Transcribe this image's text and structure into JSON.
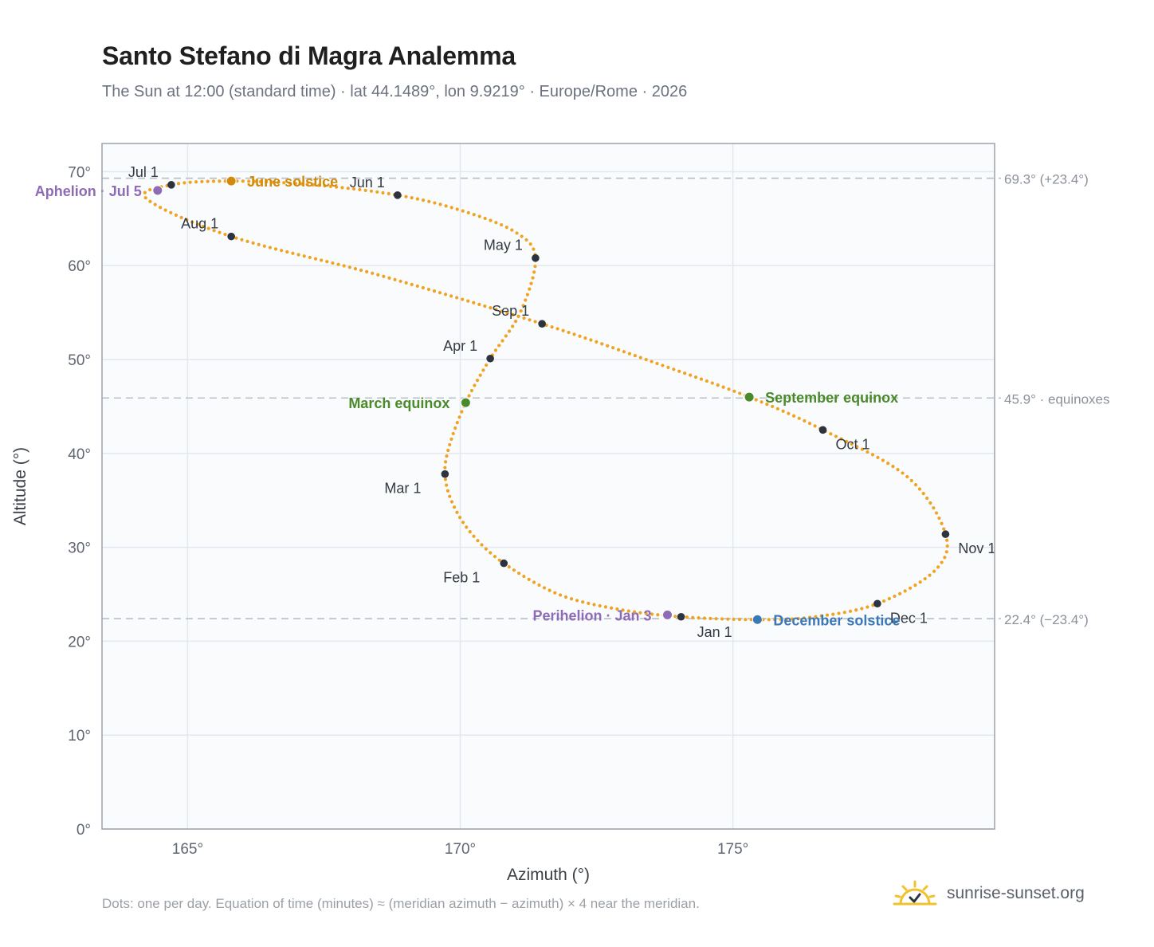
{
  "title": "Santo Stefano di Magra Analemma",
  "subtitle": "The Sun at 12:00 (standard time) · lat 44.1489°, lon 9.9219° · Europe/Rome · 2026",
  "footnote": "Dots: one per day. Equation of time (minutes) ≈ (meridian azimuth − azimuth) × 4 near the meridian.",
  "brand": "sunrise-sunset.org",
  "colors": {
    "path": "#f0a320",
    "month_dot": "#2d3440",
    "equinox": "#4a8a2a",
    "june_solstice": "#d18a0a",
    "december_solstice": "#3b78b8",
    "apsis": "#8e6bb5",
    "reference_line": "#b7c0c9",
    "plot_bg": "#f9fbfd",
    "grid": "#e3e8ee"
  },
  "chart_data": {
    "type": "scatter",
    "xlabel": "Azimuth (°)",
    "ylabel": "Altitude (°)",
    "xlim": [
      163.43,
      179.8
    ],
    "ylim": [
      0,
      73
    ],
    "xticks": [
      {
        "value": 165,
        "label": "165°"
      },
      {
        "value": 170,
        "label": "170°"
      },
      {
        "value": 175,
        "label": "175°"
      }
    ],
    "yticks": [
      {
        "value": 0,
        "label": "0°"
      },
      {
        "value": 10,
        "label": "10°"
      },
      {
        "value": 20,
        "label": "20°"
      },
      {
        "value": 30,
        "label": "30°"
      },
      {
        "value": 40,
        "label": "40°"
      },
      {
        "value": 50,
        "label": "50°"
      },
      {
        "value": 60,
        "label": "60°"
      },
      {
        "value": 70,
        "label": "70°"
      }
    ],
    "grid": true,
    "reference_lines": [
      {
        "y": 69.3,
        "label": "69.3° (+23.4°)"
      },
      {
        "y": 45.9,
        "label": "45.9° · equinoxes"
      },
      {
        "y": 22.4,
        "label": "22.4° (−23.4°)"
      }
    ],
    "path_anchors": [
      {
        "x": 174.05,
        "y": 22.6
      },
      {
        "x": 172.9,
        "y": 23.4
      },
      {
        "x": 171.8,
        "y": 25.0
      },
      {
        "x": 170.8,
        "y": 28.3
      },
      {
        "x": 170.2,
        "y": 31.5
      },
      {
        "x": 169.85,
        "y": 34.8
      },
      {
        "x": 169.72,
        "y": 37.8
      },
      {
        "x": 169.8,
        "y": 40.8
      },
      {
        "x": 170.1,
        "y": 45.4
      },
      {
        "x": 170.55,
        "y": 50.1
      },
      {
        "x": 171.1,
        "y": 55.0
      },
      {
        "x": 171.38,
        "y": 60.8
      },
      {
        "x": 171.0,
        "y": 63.6
      },
      {
        "x": 170.0,
        "y": 65.9
      },
      {
        "x": 168.85,
        "y": 67.5
      },
      {
        "x": 167.3,
        "y": 68.6
      },
      {
        "x": 165.8,
        "y": 69.0
      },
      {
        "x": 164.7,
        "y": 68.6
      },
      {
        "x": 164.25,
        "y": 67.1
      },
      {
        "x": 165.8,
        "y": 63.1
      },
      {
        "x": 168.5,
        "y": 59.0
      },
      {
        "x": 171.5,
        "y": 53.8
      },
      {
        "x": 173.5,
        "y": 49.8
      },
      {
        "x": 175.3,
        "y": 46.0
      },
      {
        "x": 176.65,
        "y": 42.5
      },
      {
        "x": 178.2,
        "y": 37.5
      },
      {
        "x": 178.9,
        "y": 31.4
      },
      {
        "x": 178.7,
        "y": 27.5
      },
      {
        "x": 177.65,
        "y": 24.0
      },
      {
        "x": 176.5,
        "y": 22.6
      },
      {
        "x": 175.45,
        "y": 22.3
      },
      {
        "x": 174.05,
        "y": 22.6
      }
    ],
    "path_samples": 366,
    "months": [
      {
        "label": "Jan 1",
        "x": 174.05,
        "y": 22.6,
        "pos": "below"
      },
      {
        "label": "Feb 1",
        "x": 170.8,
        "y": 28.3,
        "pos": "below-left"
      },
      {
        "label": "Mar 1",
        "x": 169.72,
        "y": 37.8,
        "pos": "below-left"
      },
      {
        "label": "Apr 1",
        "x": 170.55,
        "y": 50.1,
        "pos": "above-left"
      },
      {
        "label": "May 1",
        "x": 171.38,
        "y": 60.8,
        "pos": "above-left"
      },
      {
        "label": "Jun 1",
        "x": 168.85,
        "y": 67.5,
        "pos": "above-left"
      },
      {
        "label": "Jul 1",
        "x": 164.7,
        "y": 68.6,
        "pos": "above-left"
      },
      {
        "label": "Aug 1",
        "x": 165.8,
        "y": 63.1,
        "pos": "above-left"
      },
      {
        "label": "Sep 1",
        "x": 171.5,
        "y": 53.8,
        "pos": "above-left"
      },
      {
        "label": "Oct 1",
        "x": 176.65,
        "y": 42.5,
        "pos": "below-right"
      },
      {
        "label": "Nov 1",
        "x": 178.9,
        "y": 31.4,
        "pos": "right"
      },
      {
        "label": "Dec 1",
        "x": 177.65,
        "y": 24.0,
        "pos": "below-right"
      }
    ],
    "events": [
      {
        "label": "June solstice",
        "x": 165.8,
        "y": 69.0,
        "kind": "june_solstice",
        "pos": "right"
      },
      {
        "label": "March equinox",
        "x": 170.1,
        "y": 45.4,
        "kind": "equinox",
        "pos": "left"
      },
      {
        "label": "September equinox",
        "x": 175.3,
        "y": 46.0,
        "kind": "equinox",
        "pos": "right"
      },
      {
        "label": "December solstice",
        "x": 175.45,
        "y": 22.3,
        "kind": "december_solstice",
        "pos": "right"
      },
      {
        "label": "Aphelion · Jul 5",
        "x": 164.45,
        "y": 68.0,
        "kind": "apsis",
        "pos": "left"
      },
      {
        "label": "Perihelion · Jan 3",
        "x": 173.8,
        "y": 22.8,
        "kind": "apsis",
        "pos": "left"
      }
    ]
  }
}
